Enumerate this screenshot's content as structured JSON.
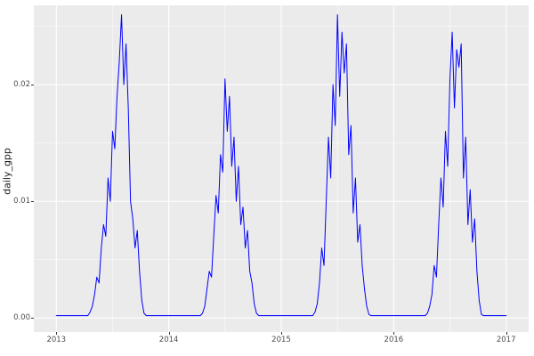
{
  "chart_data": {
    "type": "line",
    "title": "",
    "xlabel": "",
    "ylabel": "daily_gpp",
    "legend_position": "none",
    "grid": true,
    "panel_bg": "#EBEBEB",
    "grid_color": "#FFFFFF",
    "line_color": "#0000FF",
    "tick_color": "#333333",
    "tick_label_color": "#4D4D4D",
    "xlim": [
      2012.8,
      2017.2
    ],
    "ylim": [
      -0.0012,
      0.0268
    ],
    "x_ticks": [
      2013,
      2014,
      2015,
      2016,
      2017
    ],
    "x_tick_labels": [
      "2013",
      "2014",
      "2015",
      "2016",
      "2017"
    ],
    "x_minor_ticks": [
      2013.5,
      2014.5,
      2015.5,
      2016.5
    ],
    "y_ticks": [
      0,
      0.01,
      0.02
    ],
    "y_tick_labels": [
      "0.00",
      "0.01",
      "0.02"
    ],
    "y_minor_ticks": [
      0.005,
      0.015,
      0.025
    ],
    "series": [
      {
        "name": "daily_gpp",
        "x_start": 2013.0,
        "x_step": 0.02,
        "values": [
          0.0002,
          0.0002,
          0.0002,
          0.0002,
          0.0002,
          0.0002,
          0.0002,
          0.0002,
          0.0002,
          0.0002,
          0.0002,
          0.0002,
          0.0002,
          0.0002,
          0.0002,
          0.0005,
          0.001,
          0.002,
          0.0035,
          0.003,
          0.006,
          0.008,
          0.007,
          0.012,
          0.01,
          0.016,
          0.0145,
          0.019,
          0.022,
          0.026,
          0.02,
          0.0235,
          0.018,
          0.01,
          0.0085,
          0.006,
          0.0075,
          0.004,
          0.0015,
          0.0004,
          0.0002,
          0.0002,
          0.0002,
          0.0002,
          0.0002,
          0.0002,
          0.0002,
          0.0002,
          0.0002,
          0.0002,
          0.0002,
          0.0002,
          0.0002,
          0.0002,
          0.0002,
          0.0002,
          0.0002,
          0.0002,
          0.0002,
          0.0002,
          0.0002,
          0.0002,
          0.0002,
          0.0002,
          0.0002,
          0.0004,
          0.001,
          0.0025,
          0.004,
          0.0035,
          0.007,
          0.0105,
          0.009,
          0.014,
          0.0125,
          0.0205,
          0.016,
          0.019,
          0.013,
          0.0155,
          0.01,
          0.013,
          0.008,
          0.0095,
          0.006,
          0.0075,
          0.004,
          0.003,
          0.0012,
          0.0004,
          0.0002,
          0.0002,
          0.0002,
          0.0002,
          0.0002,
          0.0002,
          0.0002,
          0.0002,
          0.0002,
          0.0002,
          0.0002,
          0.0002,
          0.0002,
          0.0002,
          0.0002,
          0.0002,
          0.0002,
          0.0002,
          0.0002,
          0.0002,
          0.0002,
          0.0002,
          0.0002,
          0.0002,
          0.0002,
          0.0005,
          0.0012,
          0.003,
          0.006,
          0.0045,
          0.01,
          0.0155,
          0.012,
          0.02,
          0.0165,
          0.026,
          0.019,
          0.0245,
          0.021,
          0.0235,
          0.014,
          0.0165,
          0.009,
          0.012,
          0.0065,
          0.008,
          0.0045,
          0.0025,
          0.001,
          0.0003,
          0.0002,
          0.0002,
          0.0002,
          0.0002,
          0.0002,
          0.0002,
          0.0002,
          0.0002,
          0.0002,
          0.0002,
          0.0002,
          0.0002,
          0.0002,
          0.0002,
          0.0002,
          0.0002,
          0.0002,
          0.0002,
          0.0002,
          0.0002,
          0.0002,
          0.0002,
          0.0002,
          0.0002,
          0.0002,
          0.0004,
          0.001,
          0.002,
          0.0045,
          0.0035,
          0.008,
          0.012,
          0.0095,
          0.016,
          0.013,
          0.0205,
          0.0245,
          0.018,
          0.023,
          0.0215,
          0.0235,
          0.012,
          0.0155,
          0.008,
          0.011,
          0.0065,
          0.0085,
          0.004,
          0.0015,
          0.0003,
          0.0002,
          0.0002,
          0.0002,
          0.0002,
          0.0002,
          0.0002,
          0.0002,
          0.0002,
          0.0002,
          0.0002,
          0.0002
        ]
      }
    ]
  }
}
